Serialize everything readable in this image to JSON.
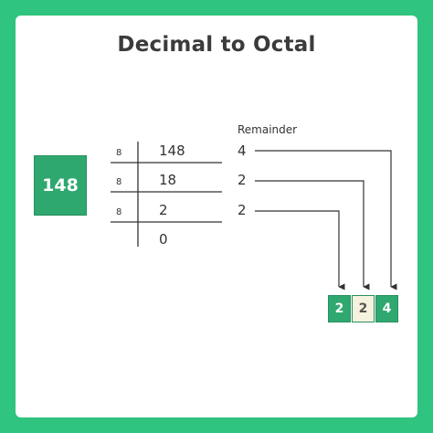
{
  "title": "Decimal to Octal",
  "input_number": "148",
  "remainder_header": "Remainder",
  "divisor": "8",
  "rows": [
    {
      "divisor": "8",
      "dividend": "148",
      "remainder": "4"
    },
    {
      "divisor": "8",
      "dividend": "18",
      "remainder": "2"
    },
    {
      "divisor": "8",
      "dividend": "2",
      "remainder": "2"
    }
  ],
  "final_quotient": "0",
  "result_digits": [
    "2",
    "2",
    "4"
  ],
  "colors": {
    "background": "#2fc47f",
    "box_green": "#2fa86f",
    "box_cream": "#f7f2df",
    "line": "#333333"
  }
}
